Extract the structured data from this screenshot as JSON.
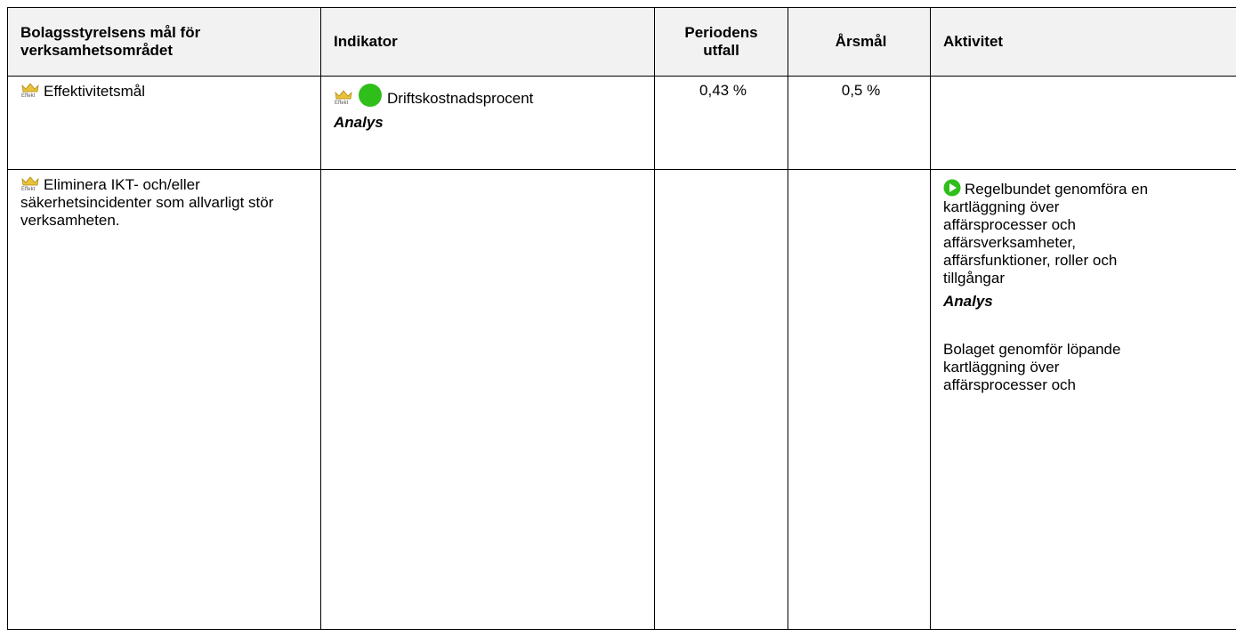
{
  "table": {
    "headers": [
      "Bolagsstyrelsens mål för verksamhetsområdet",
      "Indikator",
      "Periodens utfall",
      "Årsmål",
      "Aktivitet"
    ],
    "rows": [
      {
        "goal": "Effektivitetsmål",
        "indicator": "Driftskostnadsprocent",
        "indicator_link": "Analys",
        "outcome": "0,43 %",
        "target": "0,5 %"
      },
      {
        "goal": "Eliminera IKT- och/eller säkerhetsincidenter som allvarligt stör verksamheten.",
        "activity": "Regelbundet genomföra en kartläggning över affärsprocesser och affärsverksamheter, affärsfunktioner, roller och tillgångar",
        "activity_link": "Analys",
        "activity_note": "Bolaget genomför löpande kartläggning över affärsprocesser och"
      }
    ]
  }
}
